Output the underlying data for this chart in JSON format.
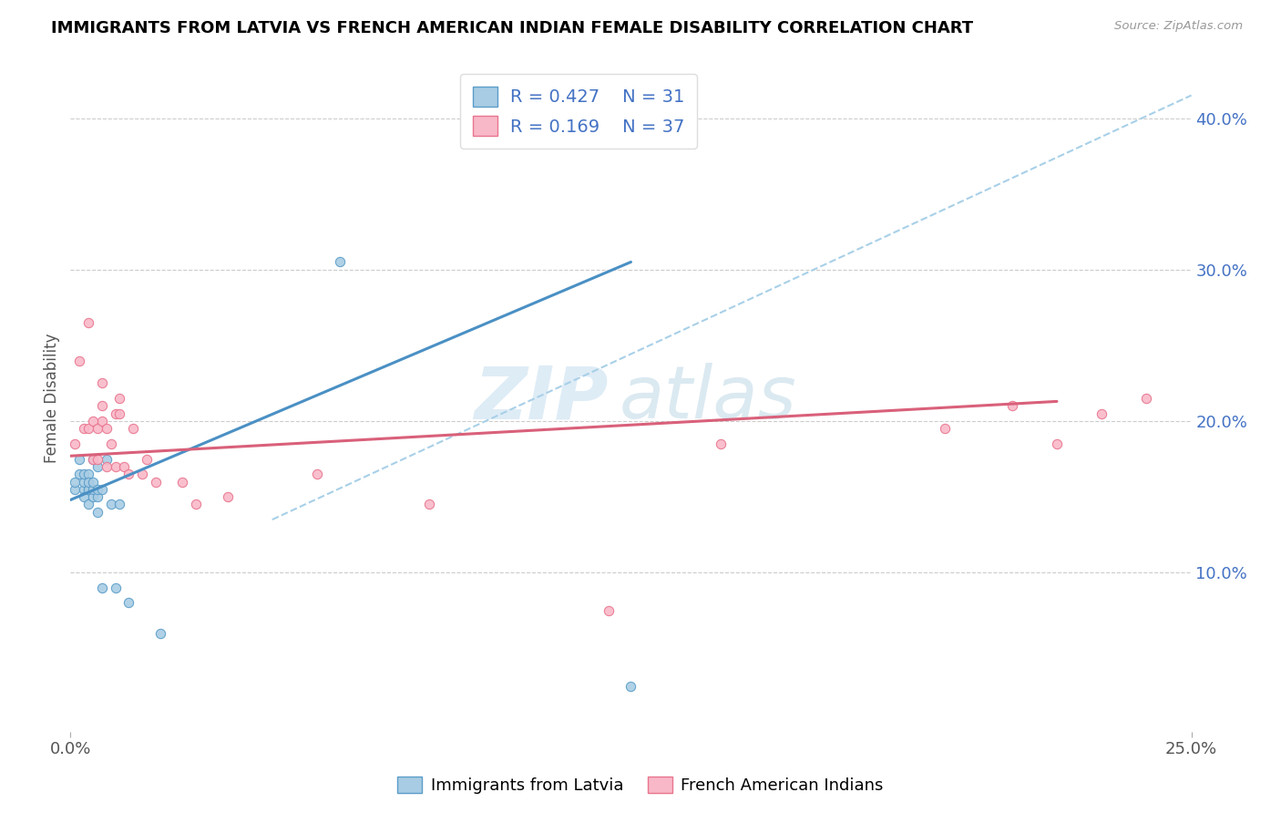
{
  "title": "IMMIGRANTS FROM LATVIA VS FRENCH AMERICAN INDIAN FEMALE DISABILITY CORRELATION CHART",
  "source_text": "Source: ZipAtlas.com",
  "ylabel": "Female Disability",
  "xlim": [
    0.0,
    0.25
  ],
  "ylim": [
    -0.005,
    0.435
  ],
  "y_tick_vals": [
    0.1,
    0.2,
    0.3,
    0.4
  ],
  "y_tick_labels": [
    "10.0%",
    "20.0%",
    "30.0%",
    "40.0%"
  ],
  "legend_R1": "R = 0.427",
  "legend_N1": "N = 31",
  "legend_R2": "R = 0.169",
  "legend_N2": "N = 37",
  "color_blue_fill": "#a8cce4",
  "color_pink_fill": "#f9b8c8",
  "color_blue_edge": "#5b9dc9",
  "color_pink_edge": "#e8758e",
  "color_blue_line": "#4a90c4",
  "color_pink_line": "#d9607a",
  "color_dashed": "#a8d0e8",
  "watermark_zip": "ZIP",
  "watermark_atlas": "atlas",
  "trend_blue_x0": 0.0,
  "trend_blue_y0": 0.148,
  "trend_blue_x1": 0.125,
  "trend_blue_y1": 0.305,
  "trend_pink_x0": 0.0,
  "trend_pink_y0": 0.177,
  "trend_pink_x1": 0.22,
  "trend_pink_y1": 0.213,
  "trend_diag_x0": 0.045,
  "trend_diag_y0": 0.135,
  "trend_diag_x1": 0.25,
  "trend_diag_y1": 0.415,
  "scatter_blue_x": [
    0.001,
    0.001,
    0.002,
    0.002,
    0.003,
    0.003,
    0.003,
    0.003,
    0.004,
    0.004,
    0.004,
    0.004,
    0.004,
    0.005,
    0.005,
    0.005,
    0.005,
    0.006,
    0.006,
    0.006,
    0.006,
    0.007,
    0.007,
    0.008,
    0.009,
    0.01,
    0.011,
    0.013,
    0.02,
    0.06,
    0.125
  ],
  "scatter_blue_y": [
    0.155,
    0.16,
    0.175,
    0.165,
    0.155,
    0.15,
    0.16,
    0.165,
    0.155,
    0.145,
    0.165,
    0.155,
    0.16,
    0.15,
    0.155,
    0.16,
    0.175,
    0.14,
    0.15,
    0.155,
    0.17,
    0.09,
    0.155,
    0.175,
    0.145,
    0.09,
    0.145,
    0.08,
    0.06,
    0.305,
    0.025
  ],
  "scatter_pink_x": [
    0.001,
    0.002,
    0.003,
    0.004,
    0.004,
    0.005,
    0.005,
    0.006,
    0.006,
    0.007,
    0.007,
    0.007,
    0.008,
    0.008,
    0.009,
    0.01,
    0.01,
    0.011,
    0.011,
    0.012,
    0.013,
    0.014,
    0.016,
    0.017,
    0.019,
    0.025,
    0.028,
    0.035,
    0.055,
    0.08,
    0.12,
    0.145,
    0.195,
    0.21,
    0.22,
    0.23,
    0.24
  ],
  "scatter_pink_y": [
    0.185,
    0.24,
    0.195,
    0.195,
    0.265,
    0.175,
    0.2,
    0.175,
    0.195,
    0.2,
    0.21,
    0.225,
    0.17,
    0.195,
    0.185,
    0.17,
    0.205,
    0.205,
    0.215,
    0.17,
    0.165,
    0.195,
    0.165,
    0.175,
    0.16,
    0.16,
    0.145,
    0.15,
    0.165,
    0.145,
    0.075,
    0.185,
    0.195,
    0.21,
    0.185,
    0.205,
    0.215
  ]
}
